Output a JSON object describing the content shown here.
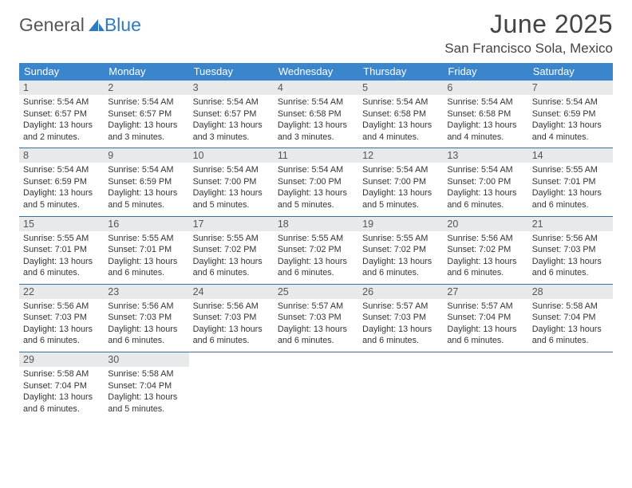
{
  "logo": {
    "text1": "General",
    "text2": "Blue"
  },
  "title": "June 2025",
  "location": "San Francisco Sola, Mexico",
  "dayNames": [
    "Sunday",
    "Monday",
    "Tuesday",
    "Wednesday",
    "Thursday",
    "Friday",
    "Saturday"
  ],
  "colors": {
    "headerBg": "#3a85cc",
    "headerText": "#ffffff",
    "dayNumBg": "#e7e9eb",
    "weekBorder": "#3a6fa6",
    "logoBlue": "#2f79c2"
  },
  "fonts": {
    "title_pt": 32,
    "location_pt": 17,
    "dayHeader_pt": 13,
    "dayNum_pt": 12.5,
    "body_pt": 10.8,
    "logo_pt": 23
  },
  "layout": {
    "columns": 7,
    "rows": 5
  },
  "weeks": [
    [
      {
        "n": "1",
        "sr": "Sunrise: 5:54 AM",
        "ss": "Sunset: 6:57 PM",
        "d1": "Daylight: 13 hours",
        "d2": "and 2 minutes."
      },
      {
        "n": "2",
        "sr": "Sunrise: 5:54 AM",
        "ss": "Sunset: 6:57 PM",
        "d1": "Daylight: 13 hours",
        "d2": "and 3 minutes."
      },
      {
        "n": "3",
        "sr": "Sunrise: 5:54 AM",
        "ss": "Sunset: 6:57 PM",
        "d1": "Daylight: 13 hours",
        "d2": "and 3 minutes."
      },
      {
        "n": "4",
        "sr": "Sunrise: 5:54 AM",
        "ss": "Sunset: 6:58 PM",
        "d1": "Daylight: 13 hours",
        "d2": "and 3 minutes."
      },
      {
        "n": "5",
        "sr": "Sunrise: 5:54 AM",
        "ss": "Sunset: 6:58 PM",
        "d1": "Daylight: 13 hours",
        "d2": "and 4 minutes."
      },
      {
        "n": "6",
        "sr": "Sunrise: 5:54 AM",
        "ss": "Sunset: 6:58 PM",
        "d1": "Daylight: 13 hours",
        "d2": "and 4 minutes."
      },
      {
        "n": "7",
        "sr": "Sunrise: 5:54 AM",
        "ss": "Sunset: 6:59 PM",
        "d1": "Daylight: 13 hours",
        "d2": "and 4 minutes."
      }
    ],
    [
      {
        "n": "8",
        "sr": "Sunrise: 5:54 AM",
        "ss": "Sunset: 6:59 PM",
        "d1": "Daylight: 13 hours",
        "d2": "and 5 minutes."
      },
      {
        "n": "9",
        "sr": "Sunrise: 5:54 AM",
        "ss": "Sunset: 6:59 PM",
        "d1": "Daylight: 13 hours",
        "d2": "and 5 minutes."
      },
      {
        "n": "10",
        "sr": "Sunrise: 5:54 AM",
        "ss": "Sunset: 7:00 PM",
        "d1": "Daylight: 13 hours",
        "d2": "and 5 minutes."
      },
      {
        "n": "11",
        "sr": "Sunrise: 5:54 AM",
        "ss": "Sunset: 7:00 PM",
        "d1": "Daylight: 13 hours",
        "d2": "and 5 minutes."
      },
      {
        "n": "12",
        "sr": "Sunrise: 5:54 AM",
        "ss": "Sunset: 7:00 PM",
        "d1": "Daylight: 13 hours",
        "d2": "and 5 minutes."
      },
      {
        "n": "13",
        "sr": "Sunrise: 5:54 AM",
        "ss": "Sunset: 7:00 PM",
        "d1": "Daylight: 13 hours",
        "d2": "and 6 minutes."
      },
      {
        "n": "14",
        "sr": "Sunrise: 5:55 AM",
        "ss": "Sunset: 7:01 PM",
        "d1": "Daylight: 13 hours",
        "d2": "and 6 minutes."
      }
    ],
    [
      {
        "n": "15",
        "sr": "Sunrise: 5:55 AM",
        "ss": "Sunset: 7:01 PM",
        "d1": "Daylight: 13 hours",
        "d2": "and 6 minutes."
      },
      {
        "n": "16",
        "sr": "Sunrise: 5:55 AM",
        "ss": "Sunset: 7:01 PM",
        "d1": "Daylight: 13 hours",
        "d2": "and 6 minutes."
      },
      {
        "n": "17",
        "sr": "Sunrise: 5:55 AM",
        "ss": "Sunset: 7:02 PM",
        "d1": "Daylight: 13 hours",
        "d2": "and 6 minutes."
      },
      {
        "n": "18",
        "sr": "Sunrise: 5:55 AM",
        "ss": "Sunset: 7:02 PM",
        "d1": "Daylight: 13 hours",
        "d2": "and 6 minutes."
      },
      {
        "n": "19",
        "sr": "Sunrise: 5:55 AM",
        "ss": "Sunset: 7:02 PM",
        "d1": "Daylight: 13 hours",
        "d2": "and 6 minutes."
      },
      {
        "n": "20",
        "sr": "Sunrise: 5:56 AM",
        "ss": "Sunset: 7:02 PM",
        "d1": "Daylight: 13 hours",
        "d2": "and 6 minutes."
      },
      {
        "n": "21",
        "sr": "Sunrise: 5:56 AM",
        "ss": "Sunset: 7:03 PM",
        "d1": "Daylight: 13 hours",
        "d2": "and 6 minutes."
      }
    ],
    [
      {
        "n": "22",
        "sr": "Sunrise: 5:56 AM",
        "ss": "Sunset: 7:03 PM",
        "d1": "Daylight: 13 hours",
        "d2": "and 6 minutes."
      },
      {
        "n": "23",
        "sr": "Sunrise: 5:56 AM",
        "ss": "Sunset: 7:03 PM",
        "d1": "Daylight: 13 hours",
        "d2": "and 6 minutes."
      },
      {
        "n": "24",
        "sr": "Sunrise: 5:56 AM",
        "ss": "Sunset: 7:03 PM",
        "d1": "Daylight: 13 hours",
        "d2": "and 6 minutes."
      },
      {
        "n": "25",
        "sr": "Sunrise: 5:57 AM",
        "ss": "Sunset: 7:03 PM",
        "d1": "Daylight: 13 hours",
        "d2": "and 6 minutes."
      },
      {
        "n": "26",
        "sr": "Sunrise: 5:57 AM",
        "ss": "Sunset: 7:03 PM",
        "d1": "Daylight: 13 hours",
        "d2": "and 6 minutes."
      },
      {
        "n": "27",
        "sr": "Sunrise: 5:57 AM",
        "ss": "Sunset: 7:04 PM",
        "d1": "Daylight: 13 hours",
        "d2": "and 6 minutes."
      },
      {
        "n": "28",
        "sr": "Sunrise: 5:58 AM",
        "ss": "Sunset: 7:04 PM",
        "d1": "Daylight: 13 hours",
        "d2": "and 6 minutes."
      }
    ],
    [
      {
        "n": "29",
        "sr": "Sunrise: 5:58 AM",
        "ss": "Sunset: 7:04 PM",
        "d1": "Daylight: 13 hours",
        "d2": "and 6 minutes."
      },
      {
        "n": "30",
        "sr": "Sunrise: 5:58 AM",
        "ss": "Sunset: 7:04 PM",
        "d1": "Daylight: 13 hours",
        "d2": "and 5 minutes."
      },
      {
        "n": "",
        "sr": "",
        "ss": "",
        "d1": "",
        "d2": ""
      },
      {
        "n": "",
        "sr": "",
        "ss": "",
        "d1": "",
        "d2": ""
      },
      {
        "n": "",
        "sr": "",
        "ss": "",
        "d1": "",
        "d2": ""
      },
      {
        "n": "",
        "sr": "",
        "ss": "",
        "d1": "",
        "d2": ""
      },
      {
        "n": "",
        "sr": "",
        "ss": "",
        "d1": "",
        "d2": ""
      }
    ]
  ]
}
